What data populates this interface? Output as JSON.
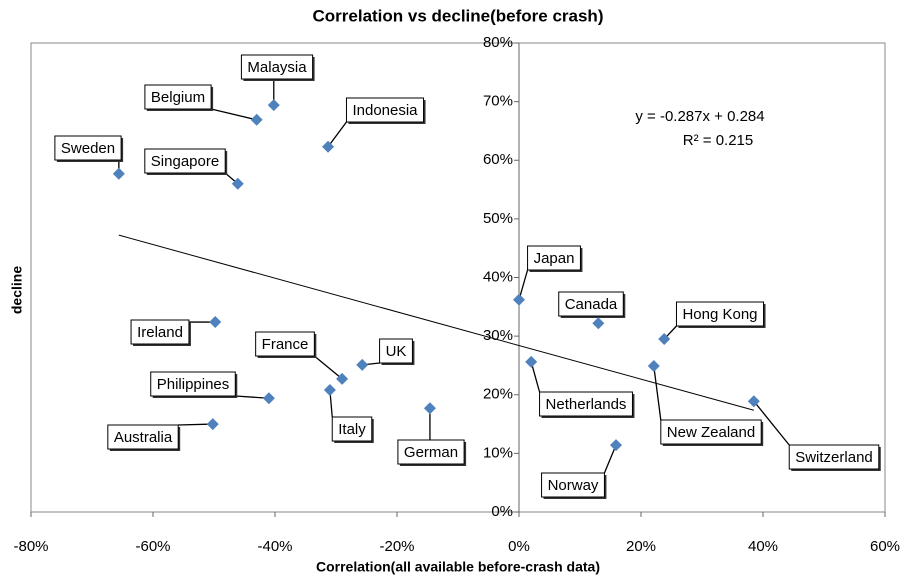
{
  "chart_data": {
    "type": "scatter",
    "title": "Correlation vs decline(before crash)",
    "x_label": "Correlation(all available before-crash data)",
    "y_label": "decline",
    "color": "#4f81bd",
    "xlim": [
      -80,
      60
    ],
    "ylim": [
      0,
      80
    ],
    "xticks": [
      {
        "value": -80,
        "label": "-80%"
      },
      {
        "value": -60,
        "label": "-60%"
      },
      {
        "value": -40,
        "label": "-40%"
      },
      {
        "value": -20,
        "label": "-20%"
      },
      {
        "value": 0,
        "label": "0%"
      },
      {
        "value": 20,
        "label": "20%"
      },
      {
        "value": 40,
        "label": "40%"
      },
      {
        "value": 60,
        "label": "60%"
      }
    ],
    "yticks": [
      {
        "value": 0,
        "label": "0%"
      },
      {
        "value": 10,
        "label": "10%"
      },
      {
        "value": 20,
        "label": "20%"
      },
      {
        "value": 30,
        "label": "30%"
      },
      {
        "value": 40,
        "label": "40%"
      },
      {
        "value": 50,
        "label": "50%"
      },
      {
        "value": 60,
        "label": "60%"
      },
      {
        "value": 70,
        "label": "70%"
      },
      {
        "value": 80,
        "label": "80%"
      }
    ],
    "points": {
      "labels": [
        "Sweden",
        "Singapore",
        "Belgium",
        "Malaysia",
        "Indonesia",
        "Japan",
        "Canada",
        "Hong Kong",
        "Netherlands",
        "New Zealand",
        "Switzerland",
        "Norway",
        "Ireland",
        "France",
        "UK",
        "Italy",
        "Philippines",
        "German",
        "Australia"
      ],
      "x": [
        -65.6,
        -46.1,
        -43.0,
        -40.2,
        -31.3,
        0.0,
        13.0,
        23.8,
        2.0,
        22.1,
        38.5,
        15.9,
        -49.8,
        -29.0,
        -25.7,
        -31.0,
        -41.0,
        -14.6,
        -50.2
      ],
      "y": [
        57.7,
        56.0,
        66.9,
        69.4,
        62.3,
        36.2,
        32.2,
        29.5,
        25.6,
        24.9,
        18.9,
        11.4,
        32.4,
        22.7,
        25.1,
        20.8,
        19.4,
        17.7,
        15.0
      ]
    },
    "trendline": {
      "slope": -0.287,
      "intercept": 28.4,
      "equation": "y = -0.287x + 0.284",
      "r2_label": "R² = 0.215"
    }
  }
}
